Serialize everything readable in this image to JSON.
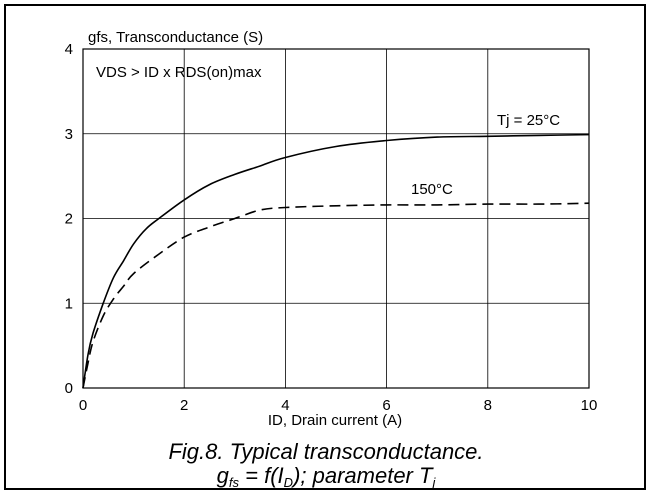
{
  "chart_data": {
    "type": "line",
    "ylabel": "gfs, Transconductance (S)",
    "xlabel": "ID, Drain current (A)",
    "condition_note": "VDS > ID x RDS(on)max",
    "xlim": [
      0,
      10
    ],
    "ylim": [
      0,
      4
    ],
    "x_ticks": [
      0,
      2,
      4,
      6,
      8,
      10
    ],
    "y_ticks": [
      0,
      1,
      2,
      3,
      4
    ],
    "grid": true,
    "series": [
      {
        "name": "Tj = 25°C",
        "line_style": "solid",
        "x": [
          0,
          0.1,
          0.2,
          0.4,
          0.6,
          0.8,
          1.0,
          1.25,
          1.5,
          2.0,
          2.5,
          3.0,
          3.5,
          4.0,
          5.0,
          6.0,
          7.0,
          8.0,
          9.0,
          10.0
        ],
        "y": [
          0,
          0.4,
          0.65,
          1.0,
          1.3,
          1.5,
          1.7,
          1.88,
          2.0,
          2.22,
          2.4,
          2.52,
          2.62,
          2.72,
          2.85,
          2.92,
          2.96,
          2.97,
          2.98,
          2.99
        ]
      },
      {
        "name": "150°C",
        "line_style": "dashed",
        "x": [
          0,
          0.1,
          0.2,
          0.4,
          0.6,
          0.8,
          1.0,
          1.5,
          2.0,
          2.5,
          3.0,
          3.5,
          4.0,
          5.0,
          6.0,
          7.0,
          8.0,
          9.0,
          10.0
        ],
        "y": [
          0,
          0.3,
          0.55,
          0.85,
          1.05,
          1.2,
          1.35,
          1.58,
          1.78,
          1.9,
          2.0,
          2.1,
          2.13,
          2.15,
          2.16,
          2.16,
          2.17,
          2.17,
          2.18
        ]
      }
    ]
  },
  "caption": {
    "line1": "Fig.8.  Typical transconductance.",
    "line2_prefix": "g",
    "line2_sub1": "fs",
    "line2_mid": " = f(I",
    "line2_sub2": "D",
    "line2_after": "); parameter T",
    "line2_sub3": "j"
  }
}
